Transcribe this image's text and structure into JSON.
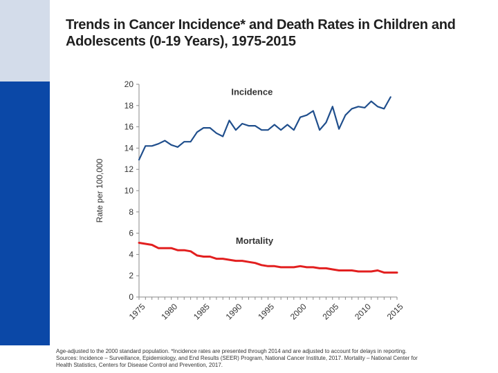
{
  "slide": {
    "title_line1": "Trends in Cancer Incidence* and Death Rates in Children and",
    "title_line2": "Adolescents (0-19 Years), 1975-2015",
    "footnote_line1": "Age-adjusted to the 2000 standard population. *Incidence rates are presented through 2014 and are adjusted to account for delays in reporting.",
    "footnote_line2": "Sources: Incidence – Surveillance, Epidemiology, and End Results (SEER) Program, National Cancer Institute, 2017. Mortality – National Center for",
    "footnote_line3": "Health Statistics, Centers for Disease Control and Prevention, 2017."
  },
  "colors": {
    "incidence": "#1f4e8c",
    "mortality": "#e21f1f",
    "side_top": "#d3dcea",
    "side_bottom": "#0b48a7"
  },
  "chart_data": {
    "type": "line",
    "title": "",
    "xlabel": "",
    "ylabel": "Rate per 100,000",
    "xlim": [
      1975,
      2015
    ],
    "ylim": [
      0,
      20
    ],
    "yticks": [
      0,
      2,
      4,
      6,
      8,
      10,
      12,
      14,
      16,
      18,
      20
    ],
    "xtick_labels": [
      "1975",
      "1980",
      "1985",
      "1990",
      "1995",
      "2000",
      "2005",
      "2010",
      "2015"
    ],
    "grid": false,
    "series": [
      {
        "name": "Incidence",
        "x": [
          1975,
          1976,
          1977,
          1978,
          1979,
          1980,
          1981,
          1982,
          1983,
          1984,
          1985,
          1986,
          1987,
          1988,
          1989,
          1990,
          1991,
          1992,
          1993,
          1994,
          1995,
          1996,
          1997,
          1998,
          1999,
          2000,
          2001,
          2002,
          2003,
          2004,
          2005,
          2006,
          2007,
          2008,
          2009,
          2010,
          2011,
          2012,
          2013,
          2014
        ],
        "y": [
          12.9,
          14.2,
          14.2,
          14.4,
          14.7,
          14.3,
          14.1,
          14.6,
          14.6,
          15.5,
          15.9,
          15.9,
          15.4,
          15.1,
          16.6,
          15.7,
          16.3,
          16.1,
          16.1,
          15.7,
          15.7,
          16.2,
          15.7,
          16.2,
          15.7,
          16.9,
          17.1,
          17.5,
          15.7,
          16.4,
          17.9,
          15.8,
          17.1,
          17.7,
          17.9,
          17.8,
          18.4,
          17.9,
          17.7,
          18.8
        ]
      },
      {
        "name": "Mortality",
        "x": [
          1975,
          1976,
          1977,
          1978,
          1979,
          1980,
          1981,
          1982,
          1983,
          1984,
          1985,
          1986,
          1987,
          1988,
          1989,
          1990,
          1991,
          1992,
          1993,
          1994,
          1995,
          1996,
          1997,
          1998,
          1999,
          2000,
          2001,
          2002,
          2003,
          2004,
          2005,
          2006,
          2007,
          2008,
          2009,
          2010,
          2011,
          2012,
          2013,
          2014,
          2015
        ],
        "y": [
          5.1,
          5.0,
          4.9,
          4.6,
          4.6,
          4.6,
          4.4,
          4.4,
          4.3,
          3.9,
          3.8,
          3.8,
          3.6,
          3.6,
          3.5,
          3.4,
          3.4,
          3.3,
          3.2,
          3.0,
          2.9,
          2.9,
          2.8,
          2.8,
          2.8,
          2.9,
          2.8,
          2.8,
          2.7,
          2.7,
          2.6,
          2.5,
          2.5,
          2.5,
          2.4,
          2.4,
          2.4,
          2.5,
          2.3,
          2.3,
          2.3
        ]
      }
    ]
  }
}
